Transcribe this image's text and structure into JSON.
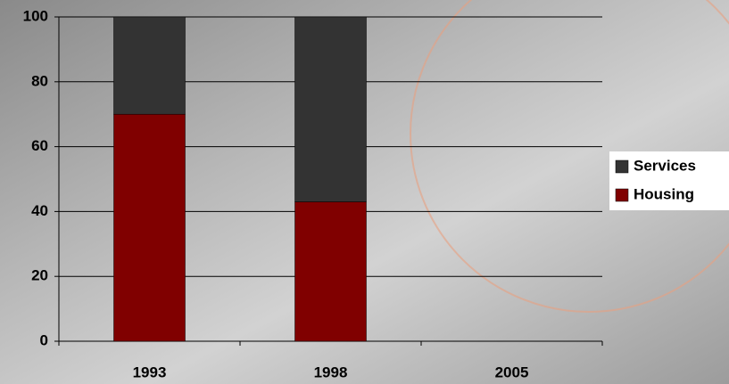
{
  "chart_data": {
    "type": "stacked_bar",
    "categories": [
      "1993",
      "1998",
      "2005"
    ],
    "series": [
      {
        "name": "Housing",
        "color": "#800000",
        "values": [
          70,
          43,
          null
        ]
      },
      {
        "name": "Services",
        "color": "#333333",
        "values": [
          30,
          57,
          null
        ]
      }
    ],
    "ylim": [
      0,
      100
    ],
    "yticks": [
      0,
      20,
      40,
      60,
      80,
      100
    ],
    "grid": true,
    "legend": "right"
  }
}
